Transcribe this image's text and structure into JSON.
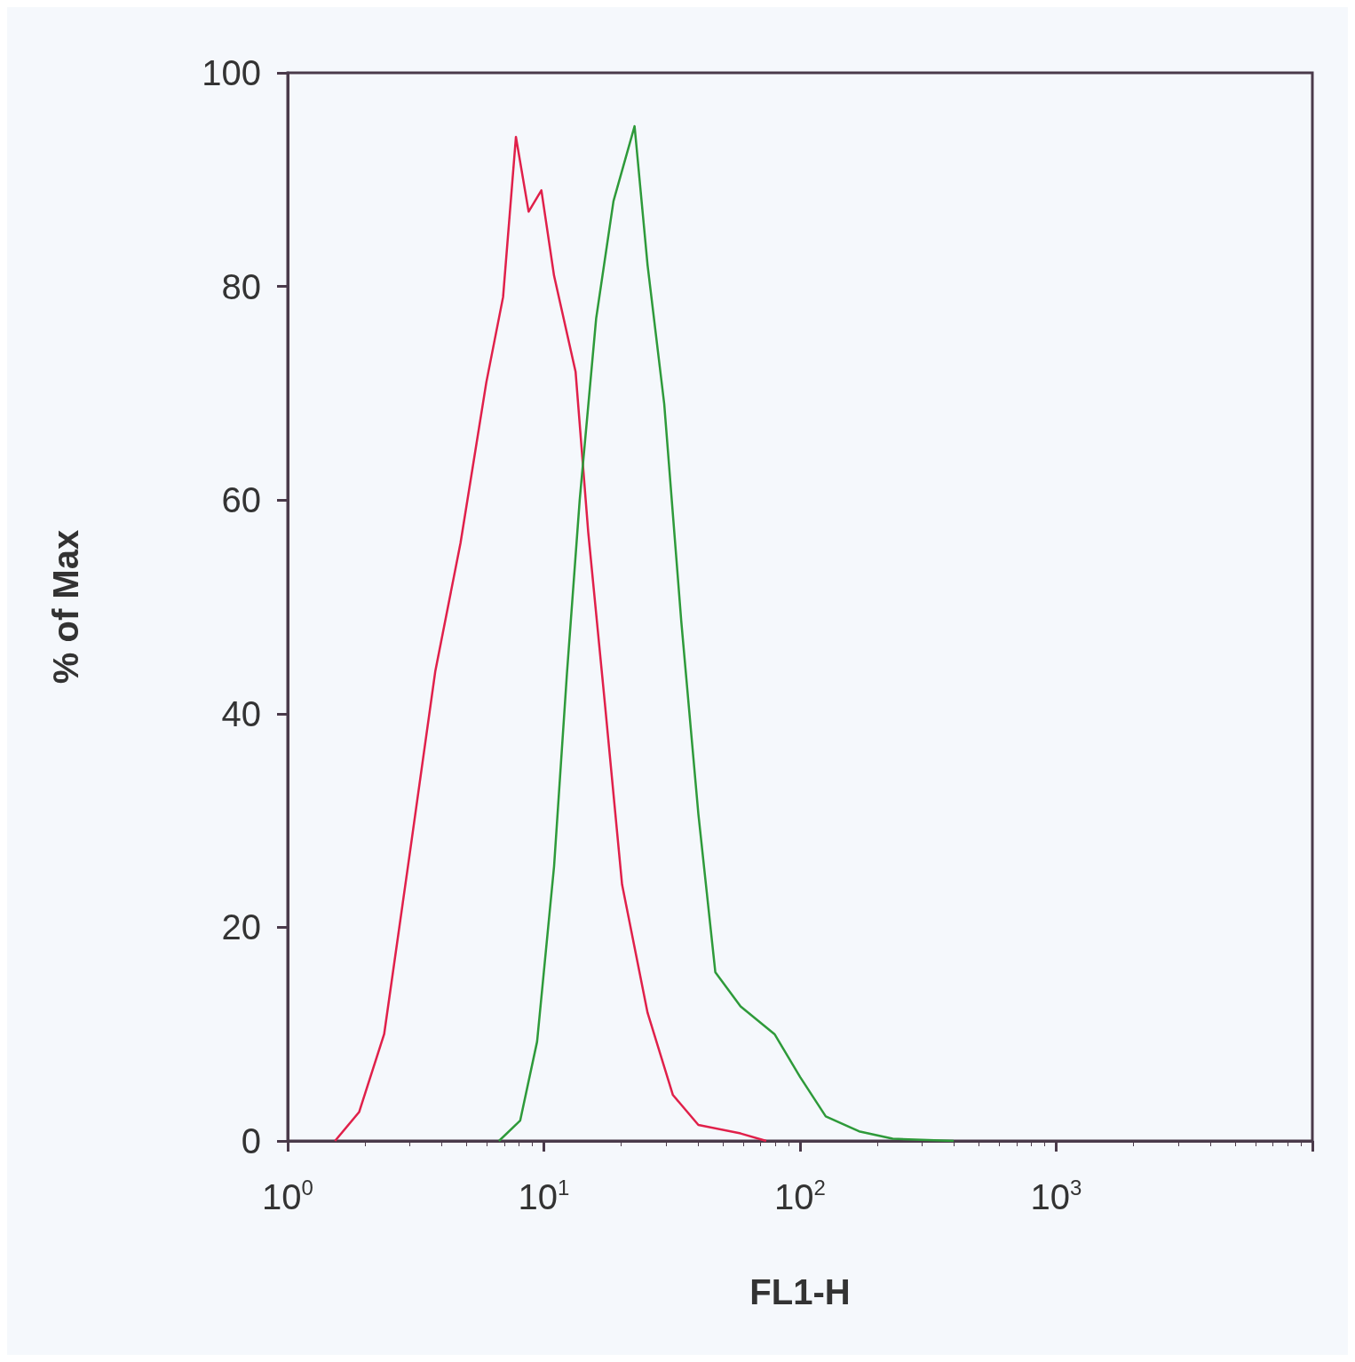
{
  "chart_data": {
    "type": "line",
    "xlabel": "FL1-H",
    "ylabel": "% of Max",
    "log": "x",
    "xlim": [
      1,
      10000
    ],
    "xticks": [
      {
        "value": 1,
        "label": "10$^{0}$"
      },
      {
        "value": 10,
        "label": "10$^{1}$"
      },
      {
        "value": 100,
        "label": "10$^{2}$"
      },
      {
        "value": 1000,
        "label": "10$^{3}$"
      },
      {
        "value": 10000,
        "label": null
      }
    ],
    "ylim": [
      0,
      100
    ],
    "yticks": [
      0,
      20,
      40,
      60,
      80,
      100
    ],
    "marker": "none",
    "line_style": "solid",
    "series": [
      {
        "color": "#e0204a",
        "x": [
          1.53,
          1.9,
          2.38,
          3.0,
          3.77,
          4.73,
          5.96,
          6.93,
          7.78,
          8.72,
          9.78,
          10.96,
          13.3,
          14.9,
          17.3,
          20.2,
          25.4,
          31.9,
          40.1,
          58.6,
          73.8
        ],
        "values": [
          0,
          2.7,
          10,
          27,
          44,
          56,
          71,
          79,
          94,
          87,
          89,
          81,
          72,
          57,
          41,
          24,
          12,
          4.3,
          1.5,
          0.7,
          0
        ]
      },
      {
        "color": "#2e9a3a",
        "x": [
          6.68,
          8.08,
          9.41,
          10.96,
          12.3,
          13.8,
          16.0,
          18.7,
          22.6,
          25.4,
          29.5,
          34.4,
          40.1,
          46.7,
          58.6,
          79.5,
          100,
          126,
          170,
          230,
          398
        ],
        "values": [
          0,
          1.9,
          9.3,
          25.7,
          43.7,
          60,
          77,
          88,
          95,
          82,
          69,
          48.6,
          30.6,
          15.8,
          12.6,
          10,
          6,
          2.3,
          0.9,
          0.2,
          0
        ]
      }
    ]
  }
}
